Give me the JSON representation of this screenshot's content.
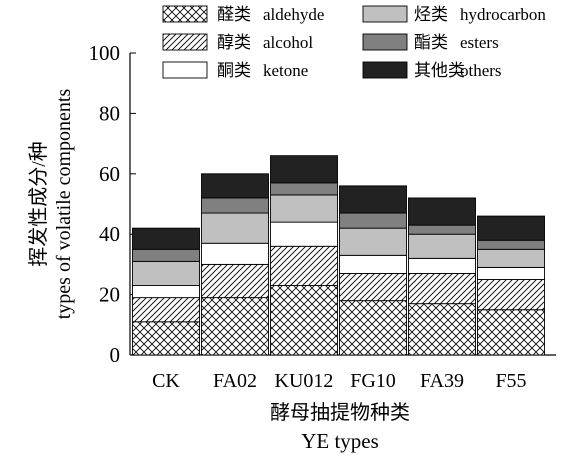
{
  "chart_data": {
    "type": "bar",
    "stacked": true,
    "categories": [
      "CK",
      "FA02",
      "KU012",
      "FG10",
      "FA39",
      "F55"
    ],
    "series": [
      {
        "name_cn": "醛类",
        "name": "aldehyde",
        "pattern": "crosshatch",
        "values": [
          11,
          19,
          23,
          18,
          17,
          15
        ]
      },
      {
        "name_cn": "醇类",
        "name": "alcohol",
        "pattern": "diagonal",
        "values": [
          8,
          11,
          13,
          9,
          10,
          10
        ]
      },
      {
        "name_cn": "酮类",
        "name": "ketone",
        "color": "#ffffff",
        "values": [
          4,
          7,
          8,
          6,
          5,
          4
        ]
      },
      {
        "name_cn": "烃类",
        "name": "hydrocarbon",
        "color": "#c0c0c0",
        "values": [
          8,
          10,
          9,
          9,
          8,
          6
        ]
      },
      {
        "name_cn": "酯类",
        "name": "esters",
        "color": "#808080",
        "values": [
          4,
          5,
          4,
          5,
          3,
          3
        ]
      },
      {
        "name_cn": "其他类",
        "name": "others",
        "color": "#222222",
        "values": [
          7,
          8,
          9,
          9,
          9,
          8
        ]
      }
    ],
    "ylabel_cn": "挥发性成分/种",
    "ylabel": "types of volatile components",
    "xlabel_cn": "酵母抽提物种类",
    "xlabel": "YE types",
    "ylim": [
      0,
      100
    ],
    "yticks": [
      0,
      20,
      40,
      60,
      80,
      100
    ],
    "legend_position": "top"
  }
}
